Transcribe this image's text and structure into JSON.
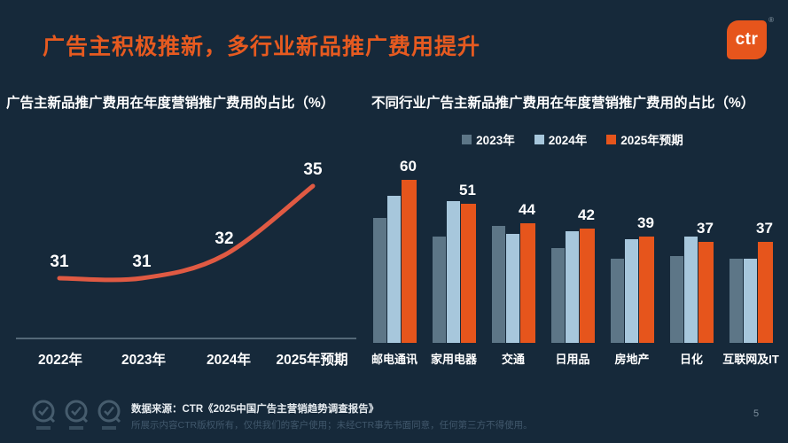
{
  "page": {
    "title": "广告主积极推新，多行业新品推广费用提升",
    "page_number": "5",
    "logo": {
      "text": "ctr",
      "reg": "®"
    }
  },
  "footer": {
    "source": "数据来源：CTR《2025中国广告主营销趋势调查报告》",
    "disclaimer": "所展示内容CTR版权所有，仅供我们的客户使用；未经CTR事先书面同意，任何第三方不得使用。",
    "watermark_icons": [
      "gauge-check-icon",
      "gauge-check-icon",
      "gauge-check-icon"
    ]
  },
  "colors": {
    "background": "#16293A",
    "title_orange": "#E65A20",
    "bar_2023": "#5D7687",
    "bar_2024": "#A7C7DC",
    "bar_2025": "#E6551C",
    "line": "#E05A43",
    "axis": "#93A7B4",
    "text": "#FFFFFF"
  },
  "chart_data": [
    {
      "type": "line",
      "title": "广告主新品推广费用在年度营销推广费用的占比（%）",
      "categories": [
        "2022年",
        "2023年",
        "2024年",
        "2025年预期"
      ],
      "values": [
        31,
        31,
        32,
        35
      ],
      "xlabel": "",
      "ylabel": "",
      "ylim": [
        28,
        37
      ],
      "grid": false,
      "legend_position": "none",
      "data_labels": true,
      "line_color": "#E05A43",
      "smooth": true
    },
    {
      "type": "bar",
      "title": "不同行业广告主新品推广费用在年度营销推广费用的占比（%）",
      "categories": [
        "邮电通讯",
        "家用电器",
        "交通",
        "日用品",
        "房地产",
        "日化",
        "互联网及IT"
      ],
      "series": [
        {
          "name": "2023年",
          "color": "#5D7687",
          "show_labels": false,
          "values": [
            46,
            39,
            43,
            35,
            31,
            32,
            31
          ]
        },
        {
          "name": "2024年",
          "color": "#A7C7DC",
          "show_labels": false,
          "values": [
            54,
            52,
            40,
            41,
            38,
            39,
            31
          ]
        },
        {
          "name": "2025年预期",
          "color": "#E6551C",
          "show_labels": true,
          "values": [
            60,
            51,
            44,
            42,
            39,
            37,
            37
          ]
        }
      ],
      "ylim": [
        0,
        65
      ],
      "grid": false,
      "legend_position": "top",
      "data_labels": "2025年预期 series only"
    }
  ]
}
